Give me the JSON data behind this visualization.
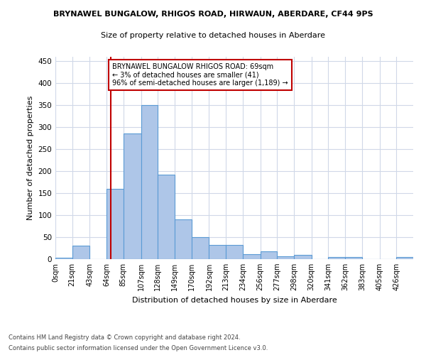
{
  "title1": "BRYNAWEL BUNGALOW, RHIGOS ROAD, HIRWAUN, ABERDARE, CF44 9PS",
  "title2": "Size of property relative to detached houses in Aberdare",
  "xlabel": "Distribution of detached houses by size in Aberdare",
  "ylabel": "Number of detached properties",
  "bin_labels": [
    "0sqm",
    "21sqm",
    "43sqm",
    "64sqm",
    "85sqm",
    "107sqm",
    "128sqm",
    "149sqm",
    "170sqm",
    "192sqm",
    "213sqm",
    "234sqm",
    "256sqm",
    "277sqm",
    "298sqm",
    "320sqm",
    "341sqm",
    "362sqm",
    "383sqm",
    "405sqm",
    "426sqm"
  ],
  "bar_values": [
    4,
    30,
    0,
    160,
    285,
    350,
    192,
    91,
    50,
    32,
    32,
    11,
    17,
    7,
    10,
    0,
    5,
    5,
    0,
    0,
    5
  ],
  "bar_color": "#aec6e8",
  "bar_edge_color": "#5b9bd5",
  "vline_x": 69,
  "vline_color": "#c00000",
  "annotation_text": "BRYNAWEL BUNGALOW RHIGOS ROAD: 69sqm\n← 3% of detached houses are smaller (41)\n96% of semi-detached houses are larger (1,189) →",
  "annotation_box_color": "#ffffff",
  "annotation_border_color": "#c00000",
  "ylim": [
    0,
    460
  ],
  "yticks": [
    0,
    50,
    100,
    150,
    200,
    250,
    300,
    350,
    400,
    450
  ],
  "footer1": "Contains HM Land Registry data © Crown copyright and database right 2024.",
  "footer2": "Contains public sector information licensed under the Open Government Licence v3.0.",
  "bg_color": "#ffffff",
  "grid_color": "#d0d8e8"
}
